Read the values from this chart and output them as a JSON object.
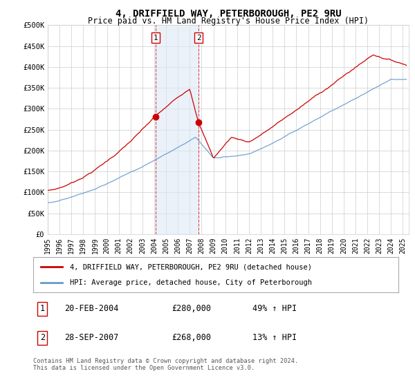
{
  "title1": "4, DRIFFIELD WAY, PETERBOROUGH, PE2 9RU",
  "title2": "Price paid vs. HM Land Registry's House Price Index (HPI)",
  "ylabel_ticks": [
    "£0",
    "£50K",
    "£100K",
    "£150K",
    "£200K",
    "£250K",
    "£300K",
    "£350K",
    "£400K",
    "£450K",
    "£500K"
  ],
  "ylim": [
    0,
    500000
  ],
  "xlim_start": 1995.0,
  "xlim_end": 2025.5,
  "purchase1_date": 2004.13,
  "purchase1_price": 280000,
  "purchase2_date": 2007.74,
  "purchase2_price": 268000,
  "legend_line1": "4, DRIFFIELD WAY, PETERBOROUGH, PE2 9RU (detached house)",
  "legend_line2": "HPI: Average price, detached house, City of Peterborough",
  "annotation1_label": "1",
  "annotation1_date": "20-FEB-2004",
  "annotation1_price": "£280,000",
  "annotation1_hpi": "49% ↑ HPI",
  "annotation2_label": "2",
  "annotation2_date": "28-SEP-2007",
  "annotation2_price": "£268,000",
  "annotation2_hpi": "13% ↑ HPI",
  "footer": "Contains HM Land Registry data © Crown copyright and database right 2024.\nThis data is licensed under the Open Government Licence v3.0.",
  "line_red": "#cc0000",
  "line_blue": "#6699cc",
  "fill_blue": "#dce9f5",
  "background": "#ffffff",
  "grid_color": "#cccccc"
}
